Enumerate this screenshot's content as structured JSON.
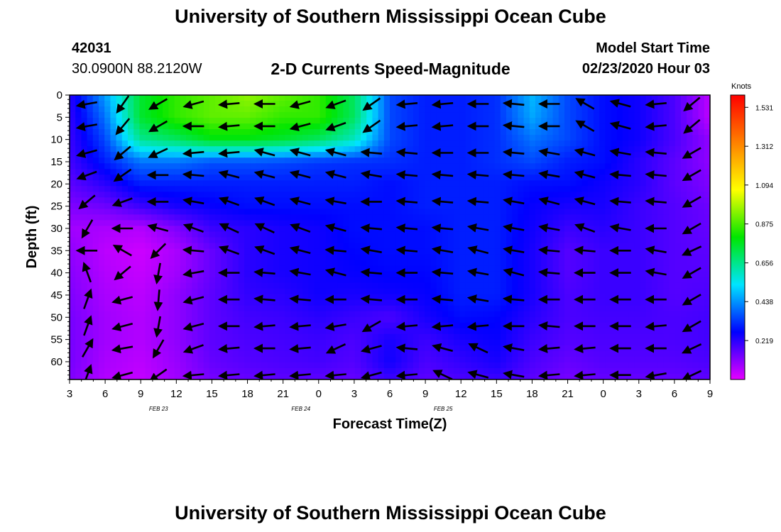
{
  "header": {
    "title_top": "University of Southern Mississippi Ocean Cube",
    "station_id": "42031",
    "station_coords": "30.0900N 88.2120W",
    "chart_title": "2-D Currents Speed-Magnitude",
    "start_label": "Model Start Time",
    "start_value": "02/23/2020 Hour 03"
  },
  "footer": {
    "title_bottom": "University of Southern Mississippi Ocean Cube"
  },
  "chart_data": {
    "type": "heatmap",
    "title": "2-D Currents Speed-Magnitude",
    "xlabel": "Forecast Time(Z)",
    "ylabel": "Depth (ft)",
    "x_ticks": [
      "3",
      "6",
      "9",
      "12",
      "15",
      "18",
      "21",
      "0",
      "3",
      "6",
      "9",
      "12",
      "15",
      "18",
      "21",
      "0",
      "3",
      "6",
      "9"
    ],
    "date_labels": [
      {
        "label": "FEB 23",
        "tick_index": 5
      },
      {
        "label": "FEB 24",
        "tick_index": 13
      },
      {
        "label": "FEB 25",
        "tick_index": 21
      }
    ],
    "y_ticks": [
      0,
      5,
      10,
      15,
      20,
      25,
      30,
      35,
      40,
      45,
      50,
      55,
      60
    ],
    "ylim": [
      0,
      64
    ],
    "xlim_hours": [
      0,
      54
    ],
    "colorbar": {
      "label": "Knots",
      "ticks": [
        1.531,
        1.312,
        1.094,
        0.875,
        0.656,
        0.438,
        0.219
      ],
      "range": [
        0,
        1.6
      ],
      "colors": [
        "#e600ff",
        "#0000ff",
        "#00e5ff",
        "#00e600",
        "#ffff00",
        "#ff8000",
        "#ff0000"
      ]
    },
    "speed_grid_hours": [
      0,
      3,
      6,
      9,
      12,
      15,
      18,
      21,
      24,
      27,
      30,
      33,
      36,
      39,
      42,
      45,
      48,
      51,
      54
    ],
    "speed_grid_depths": [
      0,
      5,
      10,
      15,
      20,
      25,
      30,
      35,
      40,
      45,
      50,
      55,
      60,
      64
    ],
    "speed_grid": [
      [
        0.22,
        0.45,
        0.75,
        0.85,
        0.9,
        0.95,
        0.9,
        0.85,
        0.7,
        0.35,
        0.3,
        0.3,
        0.32,
        0.48,
        0.35,
        0.28,
        0.25,
        0.18,
        0.05
      ],
      [
        0.21,
        0.4,
        0.75,
        0.85,
        0.9,
        0.9,
        0.85,
        0.85,
        0.7,
        0.35,
        0.3,
        0.3,
        0.32,
        0.46,
        0.35,
        0.28,
        0.25,
        0.18,
        0.05
      ],
      [
        0.2,
        0.35,
        0.65,
        0.7,
        0.78,
        0.78,
        0.75,
        0.7,
        0.6,
        0.35,
        0.3,
        0.3,
        0.32,
        0.4,
        0.35,
        0.28,
        0.25,
        0.18,
        0.1
      ],
      [
        0.19,
        0.3,
        0.4,
        0.4,
        0.36,
        0.36,
        0.35,
        0.33,
        0.32,
        0.32,
        0.3,
        0.3,
        0.32,
        0.35,
        0.3,
        0.28,
        0.22,
        0.16,
        0.1
      ],
      [
        0.16,
        0.22,
        0.3,
        0.3,
        0.3,
        0.3,
        0.3,
        0.3,
        0.3,
        0.28,
        0.3,
        0.3,
        0.3,
        0.28,
        0.28,
        0.25,
        0.22,
        0.16,
        0.12
      ],
      [
        0.12,
        0.14,
        0.2,
        0.24,
        0.26,
        0.28,
        0.28,
        0.28,
        0.28,
        0.28,
        0.3,
        0.3,
        0.3,
        0.26,
        0.24,
        0.24,
        0.2,
        0.17,
        0.14
      ],
      [
        0.08,
        0.07,
        0.06,
        0.12,
        0.2,
        0.22,
        0.24,
        0.25,
        0.28,
        0.28,
        0.28,
        0.3,
        0.3,
        0.25,
        0.2,
        0.22,
        0.2,
        0.17,
        0.15
      ],
      [
        0.1,
        0.05,
        0.03,
        0.07,
        0.15,
        0.22,
        0.24,
        0.25,
        0.27,
        0.28,
        0.28,
        0.3,
        0.3,
        0.24,
        0.17,
        0.2,
        0.2,
        0.17,
        0.16
      ],
      [
        0.11,
        0.06,
        0.04,
        0.08,
        0.15,
        0.22,
        0.24,
        0.25,
        0.26,
        0.27,
        0.27,
        0.3,
        0.3,
        0.24,
        0.17,
        0.2,
        0.2,
        0.17,
        0.17
      ],
      [
        0.12,
        0.07,
        0.05,
        0.1,
        0.16,
        0.21,
        0.22,
        0.25,
        0.24,
        0.25,
        0.26,
        0.3,
        0.3,
        0.24,
        0.18,
        0.2,
        0.2,
        0.17,
        0.18
      ],
      [
        0.13,
        0.08,
        0.06,
        0.1,
        0.16,
        0.19,
        0.2,
        0.22,
        0.2,
        0.18,
        0.24,
        0.28,
        0.27,
        0.22,
        0.18,
        0.19,
        0.19,
        0.18,
        0.19
      ],
      [
        0.13,
        0.08,
        0.06,
        0.1,
        0.16,
        0.18,
        0.19,
        0.2,
        0.18,
        0.24,
        0.2,
        0.24,
        0.26,
        0.2,
        0.17,
        0.18,
        0.18,
        0.18,
        0.19
      ],
      [
        0.13,
        0.07,
        0.05,
        0.09,
        0.15,
        0.17,
        0.18,
        0.19,
        0.17,
        0.25,
        0.18,
        0.21,
        0.24,
        0.18,
        0.15,
        0.17,
        0.17,
        0.17,
        0.18
      ],
      [
        0.12,
        0.06,
        0.04,
        0.08,
        0.13,
        0.15,
        0.16,
        0.16,
        0.15,
        0.2,
        0.16,
        0.18,
        0.2,
        0.16,
        0.13,
        0.15,
        0.15,
        0.15,
        0.16
      ]
    ],
    "vector_hours": [
      1.5,
      4.5,
      7.5,
      10.5,
      13.5,
      16.5,
      19.5,
      22.5,
      25.5,
      28.5,
      31.5,
      34.5,
      37.5,
      40.5,
      43.5,
      46.5,
      49.5,
      52.5
    ],
    "vector_depths": [
      2,
      7,
      13,
      18,
      24,
      30,
      35,
      40,
      46,
      52,
      57,
      63
    ],
    "vector_dirs": [
      [
        260,
        215,
        240,
        255,
        265,
        270,
        255,
        250,
        235,
        265,
        265,
        270,
        275,
        270,
        300,
        285,
        265,
        230
      ],
      [
        260,
        220,
        240,
        270,
        265,
        270,
        255,
        250,
        235,
        265,
        265,
        270,
        275,
        270,
        300,
        285,
        265,
        230
      ],
      [
        255,
        230,
        245,
        265,
        265,
        285,
        285,
        285,
        275,
        275,
        270,
        270,
        275,
        280,
        285,
        280,
        275,
        240
      ],
      [
        250,
        235,
        270,
        275,
        285,
        285,
        285,
        285,
        280,
        275,
        275,
        275,
        275,
        280,
        285,
        275,
        275,
        240
      ],
      [
        230,
        250,
        270,
        280,
        290,
        290,
        285,
        280,
        270,
        275,
        275,
        275,
        280,
        285,
        285,
        275,
        275,
        240
      ],
      [
        210,
        270,
        285,
        290,
        295,
        295,
        290,
        285,
        275,
        275,
        275,
        280,
        280,
        280,
        290,
        280,
        270,
        240
      ],
      [
        270,
        300,
        225,
        275,
        290,
        290,
        285,
        275,
        280,
        275,
        280,
        285,
        280,
        275,
        275,
        270,
        280,
        245
      ],
      [
        340,
        230,
        190,
        260,
        270,
        275,
        280,
        285,
        275,
        270,
        275,
        280,
        285,
        275,
        270,
        270,
        280,
        240
      ],
      [
        20,
        255,
        185,
        255,
        270,
        275,
        275,
        270,
        275,
        270,
        275,
        280,
        275,
        270,
        270,
        270,
        270,
        240
      ],
      [
        20,
        255,
        190,
        255,
        270,
        265,
        265,
        260,
        240,
        265,
        265,
        265,
        270,
        275,
        270,
        270,
        265,
        240
      ],
      [
        30,
        260,
        210,
        250,
        265,
        270,
        265,
        245,
        255,
        275,
        285,
        295,
        280,
        265,
        265,
        270,
        270,
        245
      ],
      [
        20,
        255,
        235,
        265,
        265,
        265,
        265,
        265,
        255,
        265,
        295,
        285,
        280,
        265,
        265,
        270,
        260,
        245
      ]
    ]
  }
}
